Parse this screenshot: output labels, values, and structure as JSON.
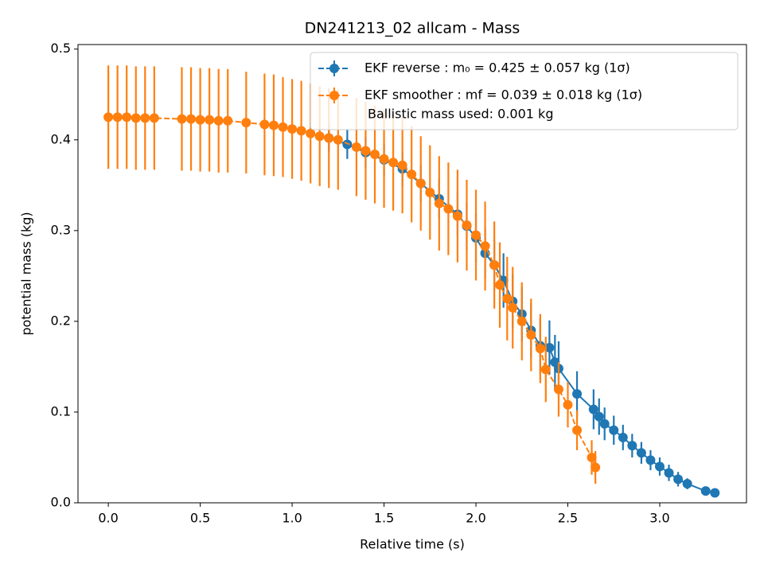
{
  "chart_data": {
    "type": "errorbar",
    "title": "DN241213_02 allcam - Mass",
    "xlabel": "Relative time (s)",
    "ylabel": "potential mass (kg)",
    "xlim": [
      -0.165,
      3.472
    ],
    "ylim": [
      0,
      0.505
    ],
    "xticks": [
      {
        "value": 0,
        "label": "0.0"
      },
      0.5,
      {
        "value": 1,
        "label": "1.0"
      },
      1.5,
      {
        "value": 2,
        "label": "2.0"
      },
      2.5,
      {
        "value": 3,
        "label": "3.0"
      }
    ],
    "yticks": [
      {
        "value": 0,
        "label": "0.0"
      },
      0.1,
      0.2,
      0.3,
      0.4,
      0.5
    ],
    "legend": "upper right",
    "legend_note": "Ballistic mass used: 0.001 kg",
    "series": [
      {
        "name": "EKF reverse : m₀ =  0.425 ± 0.057 kg (1σ)",
        "color": "#1f77b4",
        "linestyle": "solid",
        "x": [
          1.2,
          1.3,
          1.4,
          1.5,
          1.6,
          1.7,
          1.8,
          1.9,
          1.95,
          2.0,
          2.05,
          2.1,
          2.15,
          2.2,
          2.25,
          2.3,
          2.35,
          2.4,
          2.43,
          2.45,
          2.55,
          2.64,
          2.67,
          2.7,
          2.75,
          2.8,
          2.85,
          2.9,
          2.95,
          3.0,
          3.05,
          3.1,
          3.15,
          3.25,
          3.3
        ],
        "values": [
          0.402,
          0.395,
          0.386,
          0.378,
          0.368,
          0.352,
          0.335,
          0.318,
          0.305,
          0.292,
          0.275,
          0.262,
          0.245,
          0.222,
          0.208,
          0.19,
          0.173,
          0.171,
          0.155,
          0.148,
          0.12,
          0.103,
          0.095,
          0.087,
          0.08,
          0.072,
          0.063,
          0.055,
          0.047,
          0.04,
          0.033,
          0.026,
          0.021,
          0.013,
          0.011
        ],
        "errors": [
          0.015,
          0.016,
          0.017,
          0.018,
          0.019,
          0.02,
          0.022,
          0.024,
          0.026,
          0.027,
          0.028,
          0.028,
          0.03,
          0.03,
          0.03,
          0.03,
          0.03,
          0.03,
          0.03,
          0.03,
          0.025,
          0.022,
          0.02,
          0.018,
          0.016,
          0.014,
          0.013,
          0.012,
          0.011,
          0.01,
          0.009,
          0.008,
          0.006,
          0.004,
          0.003
        ]
      },
      {
        "name": "EKF smoother : mf =  0.039 ± 0.018 kg (1σ)",
        "color": "#ff7f0e",
        "linestyle": "dashed",
        "x": [
          0,
          0.05,
          0.1,
          0.15,
          0.2,
          0.25,
          0.4,
          0.45,
          0.5,
          0.55,
          0.6,
          0.65,
          0.75,
          0.85,
          0.9,
          0.95,
          1.0,
          1.05,
          1.1,
          1.15,
          1.2,
          1.25,
          1.35,
          1.4,
          1.45,
          1.5,
          1.55,
          1.6,
          1.65,
          1.7,
          1.75,
          1.8,
          1.85,
          1.9,
          1.95,
          2.0,
          2.05,
          2.1,
          2.13,
          2.17,
          2.2,
          2.25,
          2.3,
          2.35,
          2.38,
          2.45,
          2.5,
          2.55,
          2.63,
          2.65
        ],
        "values": [
          0.425,
          0.425,
          0.425,
          0.424,
          0.424,
          0.424,
          0.423,
          0.423,
          0.422,
          0.422,
          0.421,
          0.421,
          0.419,
          0.417,
          0.416,
          0.414,
          0.412,
          0.41,
          0.407,
          0.404,
          0.402,
          0.4,
          0.392,
          0.388,
          0.384,
          0.379,
          0.375,
          0.372,
          0.362,
          0.352,
          0.342,
          0.33,
          0.324,
          0.316,
          0.306,
          0.295,
          0.283,
          0.262,
          0.24,
          0.225,
          0.215,
          0.2,
          0.185,
          0.17,
          0.147,
          0.125,
          0.108,
          0.08,
          0.05,
          0.039
        ],
        "errors": [
          0.057,
          0.057,
          0.057,
          0.057,
          0.057,
          0.057,
          0.057,
          0.057,
          0.057,
          0.057,
          0.057,
          0.057,
          0.056,
          0.056,
          0.056,
          0.055,
          0.055,
          0.055,
          0.055,
          0.055,
          0.055,
          0.055,
          0.054,
          0.054,
          0.054,
          0.054,
          0.053,
          0.053,
          0.053,
          0.052,
          0.052,
          0.052,
          0.051,
          0.051,
          0.05,
          0.05,
          0.049,
          0.048,
          0.047,
          0.046,
          0.045,
          0.043,
          0.04,
          0.038,
          0.036,
          0.03,
          0.025,
          0.022,
          0.019,
          0.018
        ]
      }
    ]
  }
}
